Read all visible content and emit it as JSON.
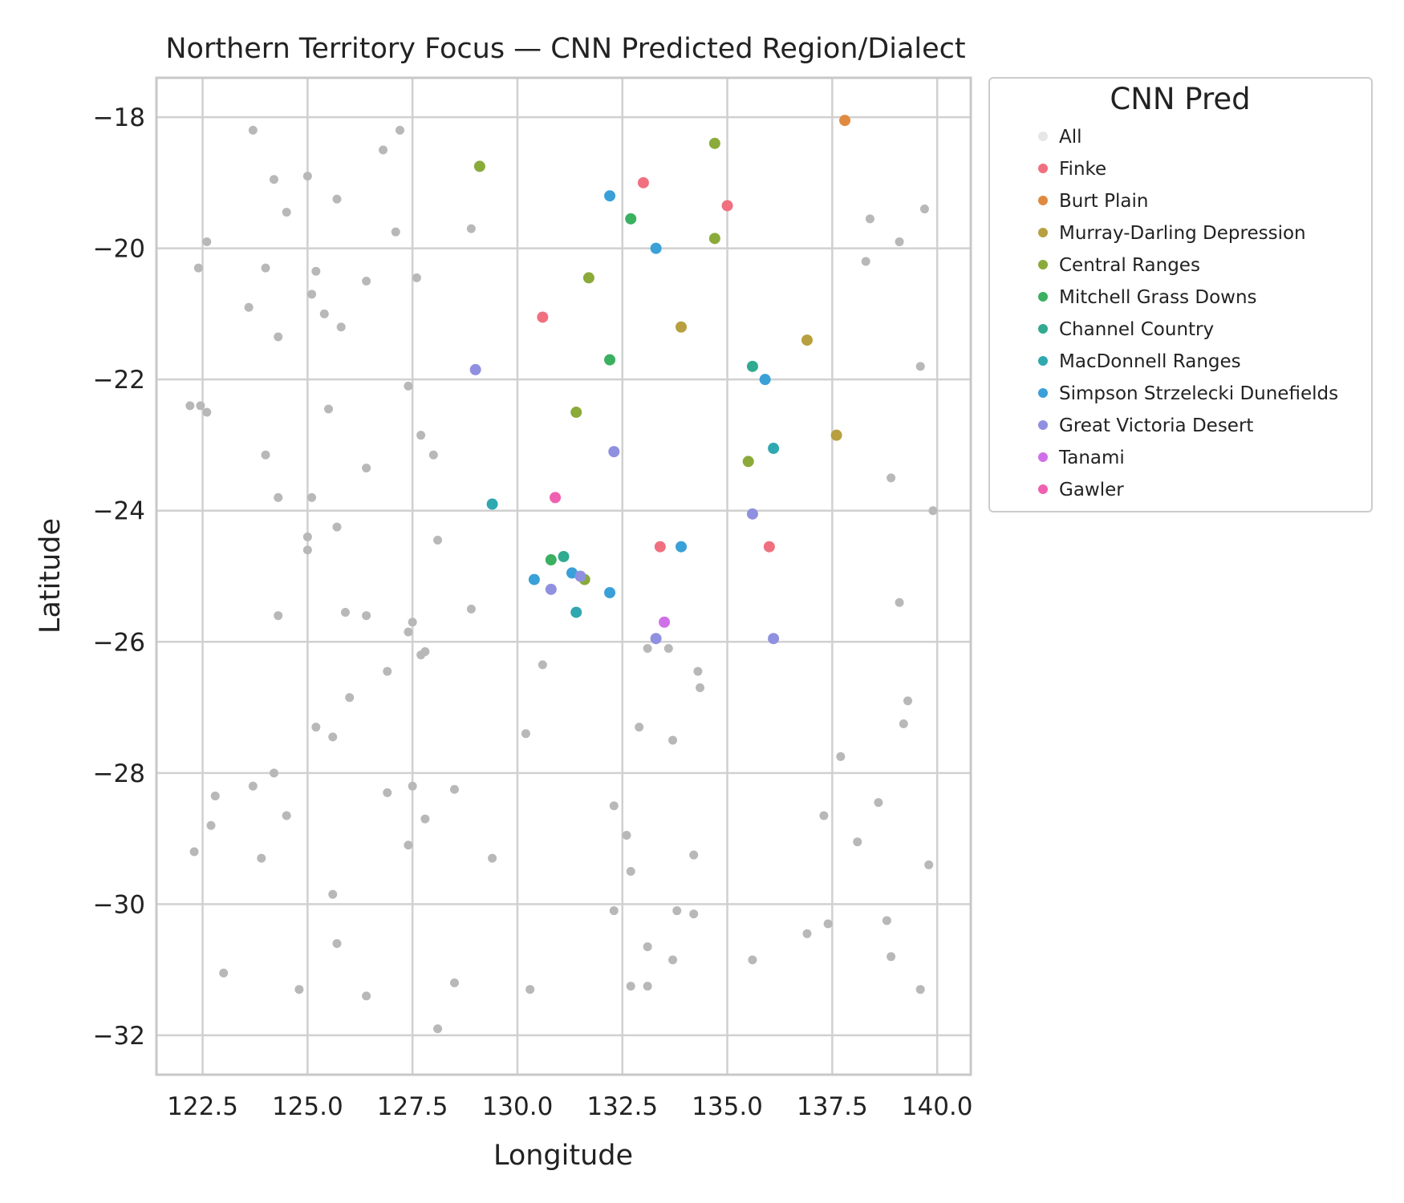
{
  "chart_data": {
    "type": "scatter",
    "title": "Northern Territory Focus — CNN Predicted Region/Dialect",
    "xlabel": "Longitude",
    "ylabel": "Latitude",
    "xlim": [
      121.4,
      140.8
    ],
    "ylim": [
      -32.6,
      -17.4
    ],
    "x_ticks": [
      122.5,
      125.0,
      127.5,
      130.0,
      132.5,
      135.0,
      137.5,
      140.0
    ],
    "x_tick_labels": [
      "122.5",
      "125.0",
      "127.5",
      "130.0",
      "132.5",
      "135.0",
      "137.5",
      "140.0"
    ],
    "y_ticks": [
      -18,
      -20,
      -22,
      -24,
      -26,
      -28,
      -30,
      -32
    ],
    "y_tick_labels": [
      "−18",
      "−20",
      "−22",
      "−24",
      "−26",
      "−28",
      "−30",
      "−32"
    ],
    "grid": true,
    "legend": {
      "title": "CNN Pred",
      "placement": "outside-right-top"
    },
    "background_points_color": "#b8b8b8",
    "series": [
      {
        "name": "All",
        "color": "#e6e6e6",
        "points": []
      },
      {
        "name": "Finke",
        "color": "#f07080",
        "points": [
          [
            133.0,
            -19.0
          ],
          [
            135.0,
            -19.35
          ],
          [
            130.6,
            -21.05
          ],
          [
            133.4,
            -24.55
          ],
          [
            136.0,
            -24.55
          ]
        ]
      },
      {
        "name": "Burt Plain",
        "color": "#e08a40",
        "points": [
          [
            137.8,
            -18.05
          ]
        ]
      },
      {
        "name": "Murray-Darling Depression",
        "color": "#b8a040",
        "points": [
          [
            133.9,
            -21.2
          ],
          [
            136.9,
            -21.4
          ],
          [
            137.6,
            -22.85
          ]
        ]
      },
      {
        "name": "Central Ranges",
        "color": "#8aaa3a",
        "points": [
          [
            129.1,
            -18.75
          ],
          [
            134.7,
            -18.4
          ],
          [
            134.7,
            -19.85
          ],
          [
            131.7,
            -20.45
          ],
          [
            131.4,
            -22.5
          ],
          [
            135.5,
            -23.25
          ],
          [
            131.6,
            -25.05
          ]
        ]
      },
      {
        "name": "Mitchell Grass Downs",
        "color": "#3ab060",
        "points": [
          [
            132.7,
            -19.55
          ],
          [
            132.2,
            -21.7
          ],
          [
            130.8,
            -24.75
          ]
        ]
      },
      {
        "name": "Channel Country",
        "color": "#30aa90",
        "points": [
          [
            135.6,
            -21.8
          ],
          [
            131.1,
            -24.7
          ]
        ]
      },
      {
        "name": "MacDonnell Ranges",
        "color": "#30a8b0",
        "points": [
          [
            136.1,
            -23.05
          ],
          [
            129.4,
            -23.9
          ],
          [
            131.4,
            -25.55
          ]
        ]
      },
      {
        "name": "Simpson Strzelecki Dunefields",
        "color": "#3aa0d8",
        "points": [
          [
            132.2,
            -19.2
          ],
          [
            133.3,
            -20.0
          ],
          [
            135.9,
            -22.0
          ],
          [
            133.9,
            -24.55
          ],
          [
            130.4,
            -25.05
          ],
          [
            131.3,
            -24.95
          ],
          [
            132.2,
            -25.25
          ]
        ]
      },
      {
        "name": "Great Victoria Desert",
        "color": "#9090e0",
        "points": [
          [
            129.0,
            -21.85
          ],
          [
            132.3,
            -23.1
          ],
          [
            135.6,
            -24.05
          ],
          [
            130.8,
            -25.2
          ],
          [
            131.5,
            -25.0
          ],
          [
            133.3,
            -25.95
          ],
          [
            136.1,
            -25.95
          ]
        ]
      },
      {
        "name": "Tanami",
        "color": "#d070e8",
        "points": [
          [
            133.5,
            -25.7
          ]
        ]
      },
      {
        "name": "Gawler",
        "color": "#f060b0",
        "points": [
          [
            130.9,
            -23.8
          ]
        ]
      }
    ],
    "background_points": [
      [
        123.7,
        -18.2
      ],
      [
        127.2,
        -18.2
      ],
      [
        126.8,
        -18.5
      ],
      [
        124.2,
        -18.95
      ],
      [
        125.0,
        -18.9
      ],
      [
        125.7,
        -19.25
      ],
      [
        124.5,
        -19.45
      ],
      [
        122.6,
        -19.9
      ],
      [
        127.1,
        -19.75
      ],
      [
        128.9,
        -19.7
      ],
      [
        138.4,
        -19.55
      ],
      [
        139.7,
        -19.4
      ],
      [
        139.1,
        -19.9
      ],
      [
        138.3,
        -20.2
      ],
      [
        122.4,
        -20.3
      ],
      [
        124.0,
        -20.3
      ],
      [
        125.2,
        -20.35
      ],
      [
        126.4,
        -20.5
      ],
      [
        127.6,
        -20.45
      ],
      [
        125.1,
        -20.7
      ],
      [
        125.4,
        -21.0
      ],
      [
        123.6,
        -20.9
      ],
      [
        125.8,
        -21.2
      ],
      [
        124.3,
        -21.35
      ],
      [
        139.6,
        -21.8
      ],
      [
        127.4,
        -22.1
      ],
      [
        122.2,
        -22.4
      ],
      [
        122.45,
        -22.4
      ],
      [
        122.6,
        -22.5
      ],
      [
        125.5,
        -22.45
      ],
      [
        127.7,
        -22.85
      ],
      [
        128.0,
        -23.15
      ],
      [
        124.0,
        -23.15
      ],
      [
        126.4,
        -23.35
      ],
      [
        138.9,
        -23.5
      ],
      [
        125.1,
        -23.8
      ],
      [
        124.3,
        -23.8
      ],
      [
        139.9,
        -24.0
      ],
      [
        125.7,
        -24.25
      ],
      [
        125.0,
        -24.4
      ],
      [
        128.1,
        -24.45
      ],
      [
        125.0,
        -24.6
      ],
      [
        139.1,
        -25.4
      ],
      [
        128.9,
        -25.5
      ],
      [
        125.9,
        -25.55
      ],
      [
        124.3,
        -25.6
      ],
      [
        126.4,
        -25.6
      ],
      [
        127.5,
        -25.7
      ],
      [
        127.4,
        -25.85
      ],
      [
        127.8,
        -26.15
      ],
      [
        127.7,
        -26.2
      ],
      [
        133.6,
        -26.1
      ],
      [
        133.1,
        -26.1
      ],
      [
        130.6,
        -26.35
      ],
      [
        126.9,
        -26.45
      ],
      [
        134.3,
        -26.45
      ],
      [
        134.35,
        -26.7
      ],
      [
        126.0,
        -26.85
      ],
      [
        139.3,
        -26.9
      ],
      [
        125.2,
        -27.3
      ],
      [
        132.9,
        -27.3
      ],
      [
        139.2,
        -27.25
      ],
      [
        125.6,
        -27.45
      ],
      [
        130.2,
        -27.4
      ],
      [
        133.7,
        -27.5
      ],
      [
        137.7,
        -27.75
      ],
      [
        124.2,
        -28.0
      ],
      [
        123.7,
        -28.2
      ],
      [
        122.8,
        -28.35
      ],
      [
        126.9,
        -28.3
      ],
      [
        127.5,
        -28.2
      ],
      [
        128.5,
        -28.25
      ],
      [
        138.6,
        -28.45
      ],
      [
        124.5,
        -28.65
      ],
      [
        127.8,
        -28.7
      ],
      [
        137.3,
        -28.65
      ],
      [
        132.3,
        -28.5
      ],
      [
        122.7,
        -28.8
      ],
      [
        132.6,
        -28.95
      ],
      [
        138.1,
        -29.05
      ],
      [
        127.4,
        -29.1
      ],
      [
        122.3,
        -29.2
      ],
      [
        123.9,
        -29.3
      ],
      [
        129.4,
        -29.3
      ],
      [
        134.2,
        -29.25
      ],
      [
        139.8,
        -29.4
      ],
      [
        132.7,
        -29.5
      ],
      [
        125.6,
        -29.85
      ],
      [
        133.8,
        -30.1
      ],
      [
        132.3,
        -30.1
      ],
      [
        134.2,
        -30.15
      ],
      [
        138.8,
        -30.25
      ],
      [
        137.4,
        -30.3
      ],
      [
        136.9,
        -30.45
      ],
      [
        125.7,
        -30.6
      ],
      [
        133.1,
        -30.65
      ],
      [
        138.9,
        -30.8
      ],
      [
        133.7,
        -30.85
      ],
      [
        135.6,
        -30.85
      ],
      [
        123.0,
        -31.05
      ],
      [
        132.7,
        -31.25
      ],
      [
        133.1,
        -31.25
      ],
      [
        128.5,
        -31.2
      ],
      [
        124.8,
        -31.3
      ],
      [
        130.3,
        -31.3
      ],
      [
        139.6,
        -31.3
      ],
      [
        126.4,
        -31.4
      ],
      [
        128.1,
        -31.9
      ]
    ]
  }
}
